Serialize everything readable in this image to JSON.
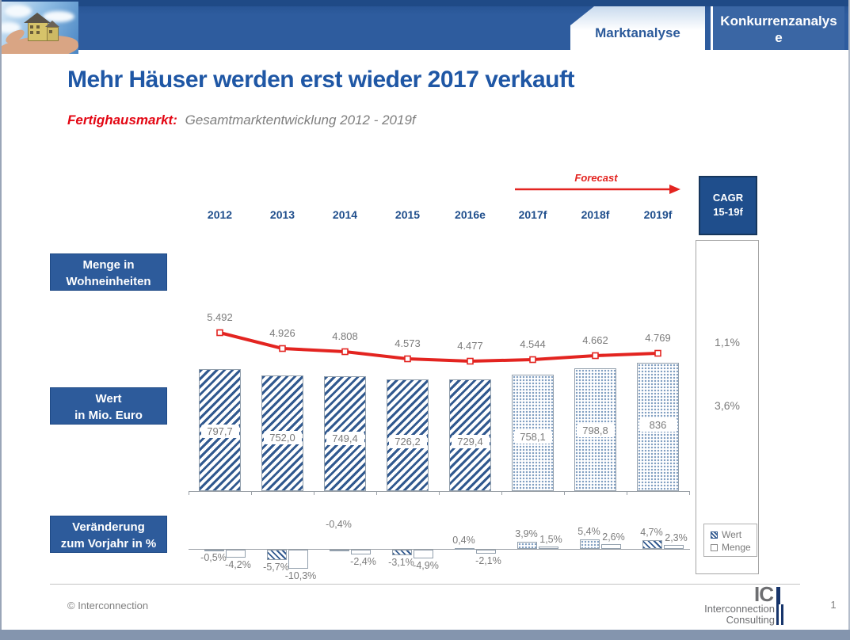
{
  "header": {
    "tabs": [
      {
        "label": "Marktanalyse",
        "active": true
      },
      {
        "label": "Konkurrenzanalyse",
        "active": false
      }
    ],
    "photo": "house-in-hand"
  },
  "title": "Mehr Häuser werden erst wieder 2017 verkauft",
  "subtitle": {
    "category": "Fertighausmarkt:",
    "description": "Gesamtmarktentwicklung 2012 - 2019f"
  },
  "forecast": {
    "label": "Forecast"
  },
  "cagr": {
    "heading_line1": "CAGR",
    "heading_line2": "15-19f",
    "menge_value": "1,1%",
    "wert_value": "3,6%"
  },
  "row_labels": {
    "menge": [
      "Menge in",
      "Wohneinheiten"
    ],
    "wert": [
      "Wert",
      "in Mio. Euro"
    ],
    "change": [
      "Veränderung",
      "zum Vorjahr in %"
    ]
  },
  "chart_data": {
    "type": "combo",
    "categories": [
      "2012",
      "2013",
      "2014",
      "2015",
      "2016e",
      "2017f",
      "2018f",
      "2019f"
    ],
    "forecast_from_index": 5,
    "series": [
      {
        "name": "Menge in Wohneinheiten",
        "type": "line",
        "color": "#e32420",
        "values": [
          5492,
          4926,
          4808,
          4573,
          4477,
          4544,
          4662,
          4769
        ],
        "labels": [
          "5.492",
          "4.926",
          "4.808",
          "4.573",
          "4.477",
          "4.544",
          "4.662",
          "4.769"
        ]
      },
      {
        "name": "Wert in Mio. Euro",
        "type": "bar",
        "values": [
          797.7,
          752.0,
          749.4,
          726.2,
          729.4,
          758.1,
          798.8,
          836
        ],
        "labels": [
          "797,7",
          "752,0",
          "749,4",
          "726,2",
          "729,4",
          "758,1",
          "798,8",
          "836"
        ],
        "pattern": [
          "hatch",
          "hatch",
          "hatch",
          "hatch",
          "hatch",
          "dots",
          "dots",
          "dots"
        ]
      }
    ],
    "change_chart": {
      "type": "bar",
      "unit": "%",
      "series": [
        {
          "name": "Wert",
          "values": [
            -0.5,
            -5.7,
            -0.4,
            -3.1,
            0.4,
            3.9,
            5.4,
            4.7
          ],
          "labels": [
            "-0,5%",
            "-5,7%",
            "-0,4%",
            "-3,1%",
            "0,4%",
            "3,9%",
            "5,4%",
            "4,7%"
          ],
          "pattern": [
            "hatch",
            "hatch",
            "hatch",
            "hatch",
            "hatch",
            "dots",
            "dots",
            "hatch"
          ],
          "label_side": [
            "auto",
            "auto",
            "above",
            "auto",
            "auto",
            "auto",
            "auto",
            "auto"
          ]
        },
        {
          "name": "Menge",
          "values": [
            -4.2,
            -10.3,
            -2.4,
            -4.9,
            -2.1,
            1.5,
            2.6,
            2.3
          ],
          "labels": [
            "-4,2%",
            "-10,3%",
            "-2,4%",
            "-4,9%",
            "-2,1%",
            "1,5%",
            "2,6%",
            "2,3%"
          ],
          "label_side": [
            "auto",
            "auto",
            "auto",
            "auto",
            "auto",
            "auto",
            "auto",
            "auto"
          ]
        }
      ]
    }
  },
  "legend": {
    "items": [
      {
        "label": "Wert",
        "swatch": "hatch"
      },
      {
        "label": "Menge",
        "swatch": "plain"
      }
    ]
  },
  "footer": {
    "copyright": "© Interconnection",
    "page_number": "1",
    "logo": {
      "monogram": "IC",
      "line1": "Interconnection",
      "line2": "Consulting"
    }
  }
}
